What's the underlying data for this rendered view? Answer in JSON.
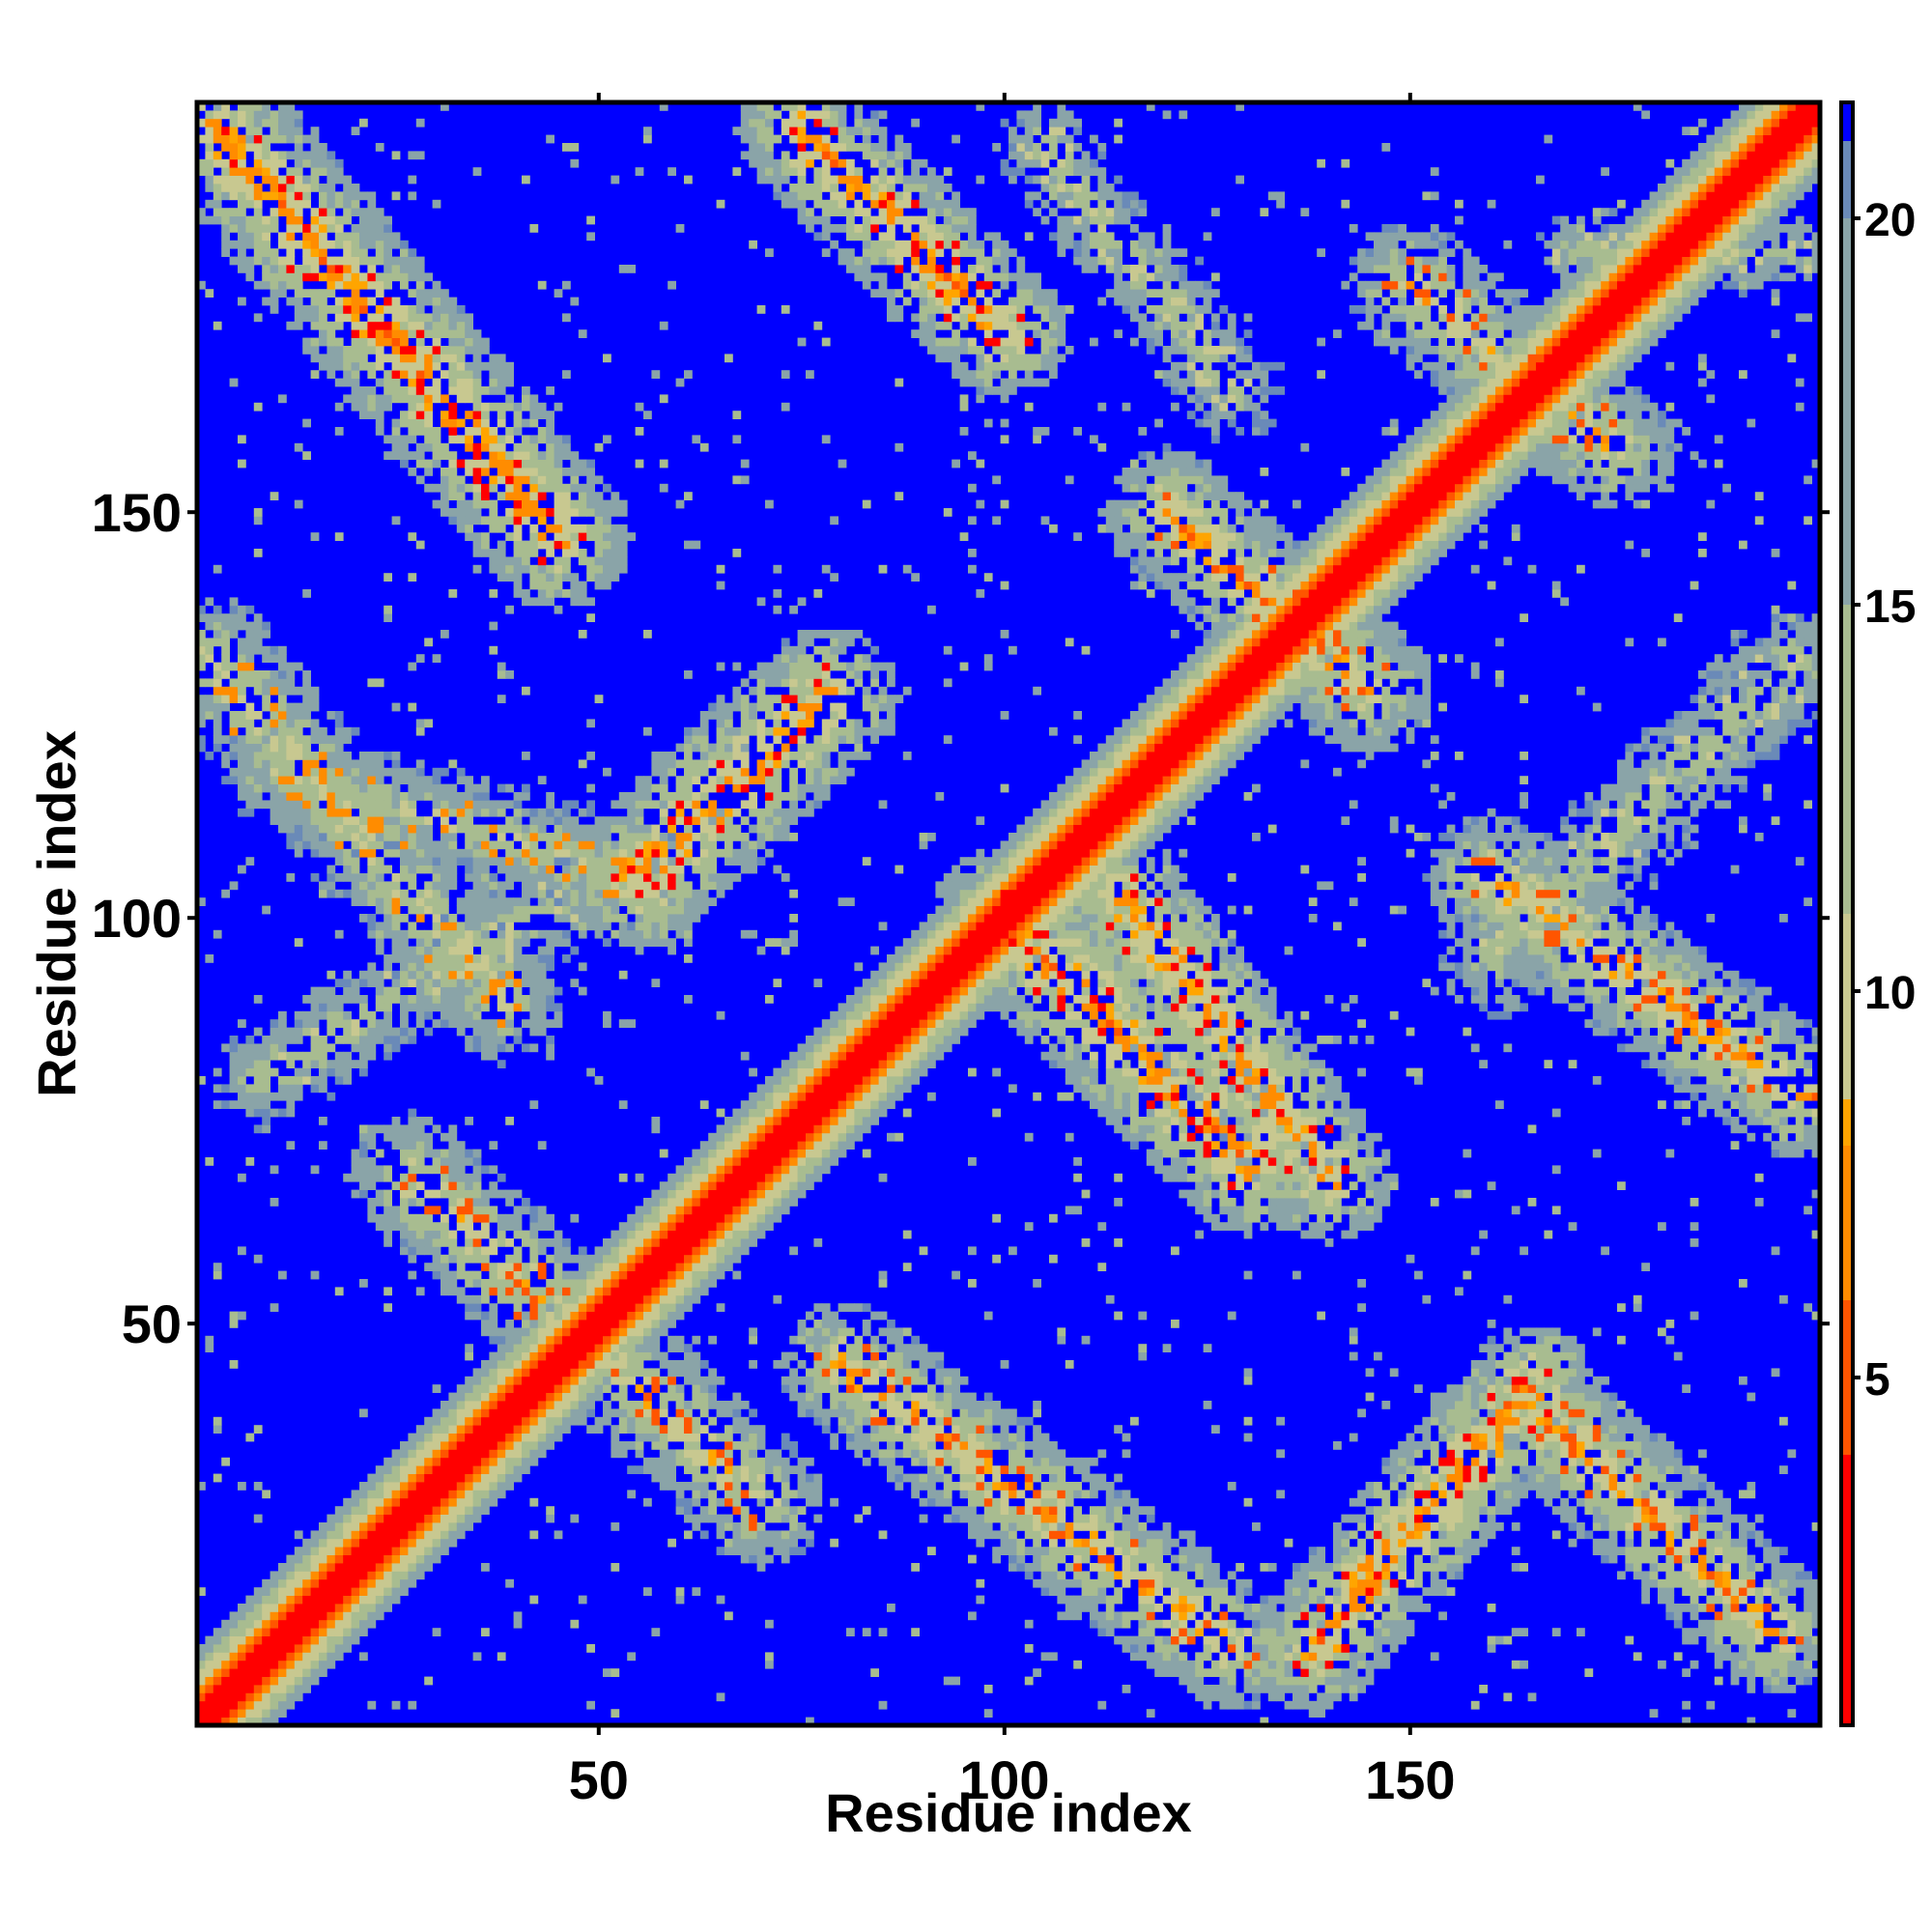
{
  "chart_data": {
    "type": "heatmap",
    "title": "",
    "xlabel": "Residue index",
    "ylabel": "Residue index",
    "xlim": [
      1,
      200
    ],
    "ylim": [
      1,
      200
    ],
    "x_ticks": [
      50,
      100,
      150
    ],
    "y_ticks": [
      50,
      100,
      150
    ],
    "x_tick_labels": [
      "50",
      "100",
      "150"
    ],
    "y_tick_labels": [
      "50",
      "100",
      "150"
    ],
    "colorbar": {
      "range": [
        0.5,
        21.5
      ],
      "ticks": [
        5,
        10,
        15,
        20
      ],
      "tick_labels": [
        "5",
        "10",
        "15",
        "20"
      ],
      "stops": [
        {
          "value": 0.5,
          "color": "#ff0000"
        },
        {
          "value": 4.0,
          "color": "#ff5500"
        },
        {
          "value": 6.0,
          "color": "#ff8c00"
        },
        {
          "value": 8.0,
          "color": "#ffa500"
        },
        {
          "value": 8.6,
          "color": "#c8c890"
        },
        {
          "value": 11.0,
          "color": "#a8bc90"
        },
        {
          "value": 15.0,
          "color": "#8aa4a8"
        },
        {
          "value": 20.0,
          "color": "#6a8ab8"
        },
        {
          "value": 21.0,
          "color": "#0000ff"
        }
      ]
    },
    "background_value": 21,
    "background_color": "#0000ff",
    "diagonal": {
      "from": 1,
      "to": 200,
      "value": 1
    },
    "contact_bands": [
      {
        "from": [
          3,
          197
        ],
        "to": [
          45,
          147
        ],
        "width": 9,
        "min_value": 4
      },
      {
        "from": [
          2,
          132
        ],
        "to": [
          38,
          90
        ],
        "width": 8,
        "min_value": 7
      },
      {
        "from": [
          10,
          118
        ],
        "to": [
          55,
          105
        ],
        "width": 7,
        "min_value": 8
      },
      {
        "from": [
          55,
          105
        ],
        "to": [
          78,
          127
        ],
        "width": 9,
        "min_value": 4
      },
      {
        "from": [
          8,
          80
        ],
        "to": [
          45,
          102
        ],
        "width": 7,
        "min_value": 9
      },
      {
        "from": [
          27,
          68
        ],
        "to": [
          70,
          28
        ],
        "width": 8,
        "min_value": 6
      },
      {
        "from": [
          75,
          197
        ],
        "to": [
          100,
          172
        ],
        "width": 8,
        "min_value": 4
      },
      {
        "from": [
          105,
          195
        ],
        "to": [
          128,
          165
        ],
        "width": 7,
        "min_value": 9
      },
      {
        "from": [
          100,
          100
        ],
        "to": [
          130,
          70
        ],
        "width": 9,
        "min_value": 4
      },
      {
        "from": [
          80,
          45
        ],
        "to": [
          128,
          10
        ],
        "width": 8,
        "min_value": 5
      },
      {
        "from": [
          138,
          10
        ],
        "to": [
          165,
          42
        ],
        "width": 8,
        "min_value": 4
      },
      {
        "from": [
          165,
          40
        ],
        "to": [
          195,
          12
        ],
        "width": 8,
        "min_value": 5
      },
      {
        "from": [
          115,
          102
        ],
        "to": [
          140,
          68
        ],
        "width": 8,
        "min_value": 4
      },
      {
        "from": [
          160,
          105
        ],
        "to": [
          198,
          78
        ],
        "width": 8,
        "min_value": 5
      },
      {
        "from": [
          160,
          95
        ],
        "to": [
          198,
          132
        ],
        "width": 8,
        "min_value": 9
      },
      {
        "from": [
          120,
          150
        ],
        "to": [
          145,
          128
        ],
        "width": 8,
        "min_value": 5
      },
      {
        "from": [
          150,
          178
        ],
        "to": [
          175,
          158
        ],
        "width": 8,
        "min_value": 6
      },
      {
        "from": [
          170,
          182
        ],
        "to": [
          198,
          182
        ],
        "width": 6,
        "min_value": 10
      }
    ]
  }
}
